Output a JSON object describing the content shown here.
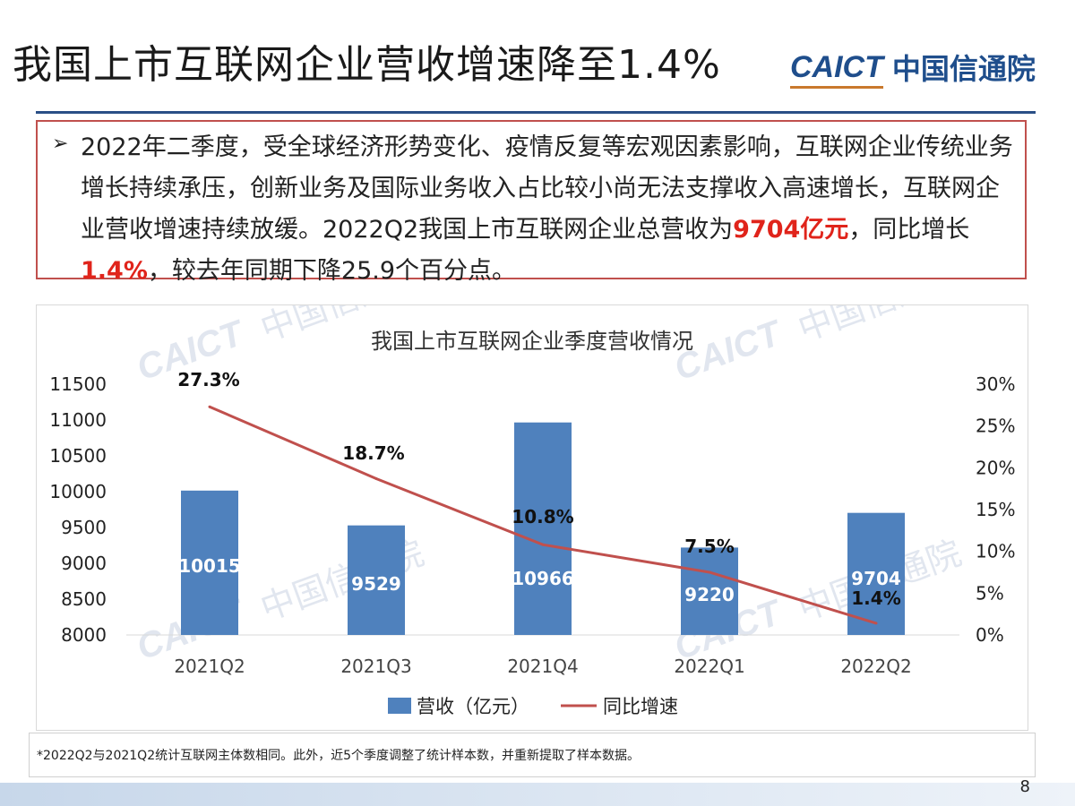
{
  "slide": {
    "title": "我国上市互联网企业营收增速降至1.4%",
    "logo_mark": "CAICT",
    "logo_cn": "中国信通院",
    "page_number": "8"
  },
  "summary": {
    "bullet": "➢",
    "text_1": "2022年二季度，受全球经济形势变化、疫情反复等宏观因素影响，互联网企业传统业务增长持续承压，创新业务及国际业务收入占比较小尚无法支撑收入高速增长，互联网企业营收增速持续放缓。2022Q2我国上市互联网企业总营收为",
    "highlight_revenue": "9704亿元",
    "text_2": "，同比增长",
    "highlight_growth": "1.4%",
    "text_3": "，较去年同期下降25.9个百分点。"
  },
  "watermark": {
    "mark": "CAICT",
    "cn": "中国信通院"
  },
  "chart_data": {
    "type": "bar",
    "title": "我国上市互联网企业季度营收情况",
    "categories": [
      "2021Q2",
      "2021Q3",
      "2021Q4",
      "2022Q1",
      "2022Q2"
    ],
    "series": [
      {
        "name": "营收（亿元）",
        "type": "bar",
        "axis": "left",
        "color": "#4f81bd",
        "values": [
          10015,
          9529,
          10966,
          9220,
          9704
        ],
        "labels": [
          "10015",
          "9529",
          "10966",
          "9220",
          "9704"
        ]
      },
      {
        "name": "同比增速",
        "type": "line",
        "axis": "right",
        "color": "#c0504d",
        "values": [
          27.3,
          18.7,
          10.8,
          7.5,
          1.4
        ],
        "labels": [
          "27.3%",
          "18.7%",
          "10.8%",
          "7.5%",
          "1.4%"
        ]
      }
    ],
    "y_left": {
      "min": 8000,
      "max": 11500,
      "ticks": [
        "8000",
        "8500",
        "9000",
        "9500",
        "10000",
        "10500",
        "11000",
        "11500"
      ]
    },
    "y_right": {
      "min": 0,
      "max": 30,
      "ticks": [
        "0%",
        "5%",
        "10%",
        "15%",
        "20%",
        "25%",
        "30%"
      ]
    },
    "legend_position": "bottom",
    "grid": false
  },
  "footnote": "*2022Q2与2021Q2统计互联网主体数相同。此外，近5个季度调整了统计样本数，并重新提取了样本数据。"
}
